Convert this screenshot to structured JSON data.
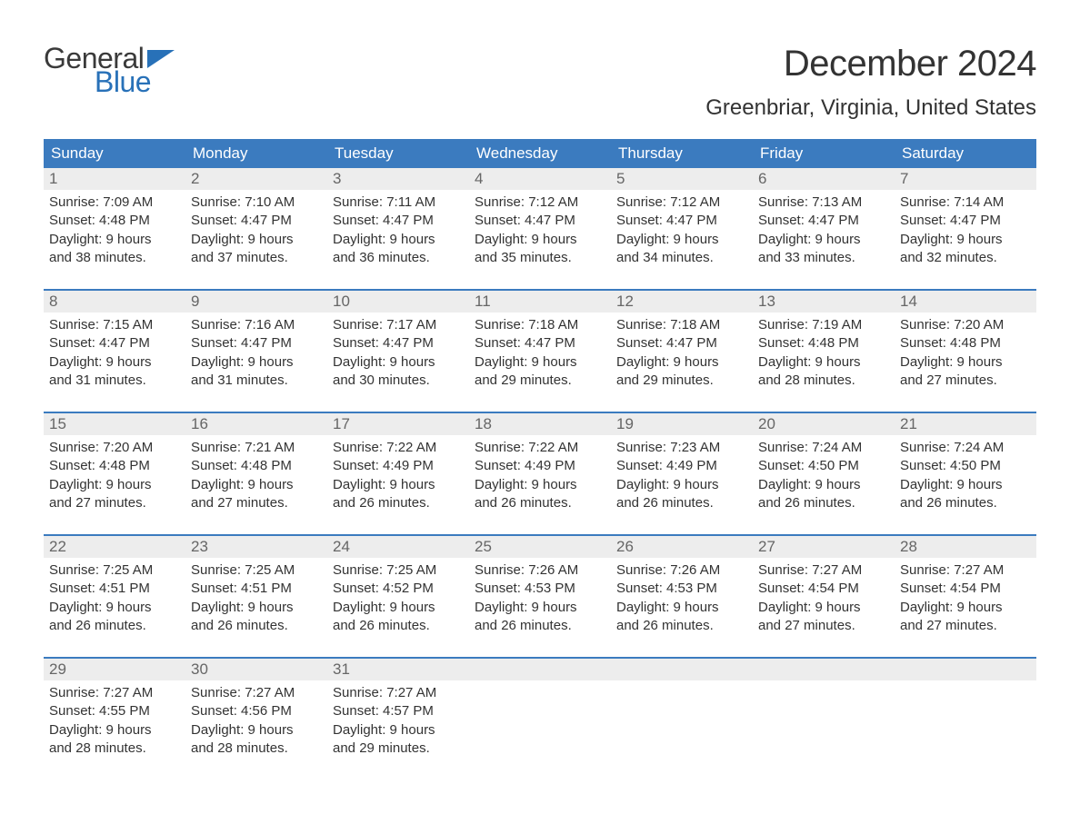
{
  "logo": {
    "text_general": "General",
    "text_blue": "Blue",
    "flag_color": "#2871b8"
  },
  "header": {
    "month_title": "December 2024",
    "location": "Greenbriar, Virginia, United States"
  },
  "style": {
    "header_bg": "#3b7bbf",
    "header_fg": "#ffffff",
    "daynum_bg": "#ededed",
    "daynum_fg": "#666666",
    "body_fg": "#333333",
    "week_sep": "#3b7bbf",
    "page_bg": "#ffffff",
    "title_fontsize": 40,
    "location_fontsize": 24,
    "dow_fontsize": 17,
    "body_fontsize": 15
  },
  "calendar": {
    "type": "table",
    "columns": [
      "Sunday",
      "Monday",
      "Tuesday",
      "Wednesday",
      "Thursday",
      "Friday",
      "Saturday"
    ],
    "weeks": [
      [
        {
          "n": "1",
          "sunrise": "Sunrise: 7:09 AM",
          "sunset": "Sunset: 4:48 PM",
          "d1": "Daylight: 9 hours",
          "d2": "and 38 minutes."
        },
        {
          "n": "2",
          "sunrise": "Sunrise: 7:10 AM",
          "sunset": "Sunset: 4:47 PM",
          "d1": "Daylight: 9 hours",
          "d2": "and 37 minutes."
        },
        {
          "n": "3",
          "sunrise": "Sunrise: 7:11 AM",
          "sunset": "Sunset: 4:47 PM",
          "d1": "Daylight: 9 hours",
          "d2": "and 36 minutes."
        },
        {
          "n": "4",
          "sunrise": "Sunrise: 7:12 AM",
          "sunset": "Sunset: 4:47 PM",
          "d1": "Daylight: 9 hours",
          "d2": "and 35 minutes."
        },
        {
          "n": "5",
          "sunrise": "Sunrise: 7:12 AM",
          "sunset": "Sunset: 4:47 PM",
          "d1": "Daylight: 9 hours",
          "d2": "and 34 minutes."
        },
        {
          "n": "6",
          "sunrise": "Sunrise: 7:13 AM",
          "sunset": "Sunset: 4:47 PM",
          "d1": "Daylight: 9 hours",
          "d2": "and 33 minutes."
        },
        {
          "n": "7",
          "sunrise": "Sunrise: 7:14 AM",
          "sunset": "Sunset: 4:47 PM",
          "d1": "Daylight: 9 hours",
          "d2": "and 32 minutes."
        }
      ],
      [
        {
          "n": "8",
          "sunrise": "Sunrise: 7:15 AM",
          "sunset": "Sunset: 4:47 PM",
          "d1": "Daylight: 9 hours",
          "d2": "and 31 minutes."
        },
        {
          "n": "9",
          "sunrise": "Sunrise: 7:16 AM",
          "sunset": "Sunset: 4:47 PM",
          "d1": "Daylight: 9 hours",
          "d2": "and 31 minutes."
        },
        {
          "n": "10",
          "sunrise": "Sunrise: 7:17 AM",
          "sunset": "Sunset: 4:47 PM",
          "d1": "Daylight: 9 hours",
          "d2": "and 30 minutes."
        },
        {
          "n": "11",
          "sunrise": "Sunrise: 7:18 AM",
          "sunset": "Sunset: 4:47 PM",
          "d1": "Daylight: 9 hours",
          "d2": "and 29 minutes."
        },
        {
          "n": "12",
          "sunrise": "Sunrise: 7:18 AM",
          "sunset": "Sunset: 4:47 PM",
          "d1": "Daylight: 9 hours",
          "d2": "and 29 minutes."
        },
        {
          "n": "13",
          "sunrise": "Sunrise: 7:19 AM",
          "sunset": "Sunset: 4:48 PM",
          "d1": "Daylight: 9 hours",
          "d2": "and 28 minutes."
        },
        {
          "n": "14",
          "sunrise": "Sunrise: 7:20 AM",
          "sunset": "Sunset: 4:48 PM",
          "d1": "Daylight: 9 hours",
          "d2": "and 27 minutes."
        }
      ],
      [
        {
          "n": "15",
          "sunrise": "Sunrise: 7:20 AM",
          "sunset": "Sunset: 4:48 PM",
          "d1": "Daylight: 9 hours",
          "d2": "and 27 minutes."
        },
        {
          "n": "16",
          "sunrise": "Sunrise: 7:21 AM",
          "sunset": "Sunset: 4:48 PM",
          "d1": "Daylight: 9 hours",
          "d2": "and 27 minutes."
        },
        {
          "n": "17",
          "sunrise": "Sunrise: 7:22 AM",
          "sunset": "Sunset: 4:49 PM",
          "d1": "Daylight: 9 hours",
          "d2": "and 26 minutes."
        },
        {
          "n": "18",
          "sunrise": "Sunrise: 7:22 AM",
          "sunset": "Sunset: 4:49 PM",
          "d1": "Daylight: 9 hours",
          "d2": "and 26 minutes."
        },
        {
          "n": "19",
          "sunrise": "Sunrise: 7:23 AM",
          "sunset": "Sunset: 4:49 PM",
          "d1": "Daylight: 9 hours",
          "d2": "and 26 minutes."
        },
        {
          "n": "20",
          "sunrise": "Sunrise: 7:24 AM",
          "sunset": "Sunset: 4:50 PM",
          "d1": "Daylight: 9 hours",
          "d2": "and 26 minutes."
        },
        {
          "n": "21",
          "sunrise": "Sunrise: 7:24 AM",
          "sunset": "Sunset: 4:50 PM",
          "d1": "Daylight: 9 hours",
          "d2": "and 26 minutes."
        }
      ],
      [
        {
          "n": "22",
          "sunrise": "Sunrise: 7:25 AM",
          "sunset": "Sunset: 4:51 PM",
          "d1": "Daylight: 9 hours",
          "d2": "and 26 minutes."
        },
        {
          "n": "23",
          "sunrise": "Sunrise: 7:25 AM",
          "sunset": "Sunset: 4:51 PM",
          "d1": "Daylight: 9 hours",
          "d2": "and 26 minutes."
        },
        {
          "n": "24",
          "sunrise": "Sunrise: 7:25 AM",
          "sunset": "Sunset: 4:52 PM",
          "d1": "Daylight: 9 hours",
          "d2": "and 26 minutes."
        },
        {
          "n": "25",
          "sunrise": "Sunrise: 7:26 AM",
          "sunset": "Sunset: 4:53 PM",
          "d1": "Daylight: 9 hours",
          "d2": "and 26 minutes."
        },
        {
          "n": "26",
          "sunrise": "Sunrise: 7:26 AM",
          "sunset": "Sunset: 4:53 PM",
          "d1": "Daylight: 9 hours",
          "d2": "and 26 minutes."
        },
        {
          "n": "27",
          "sunrise": "Sunrise: 7:27 AM",
          "sunset": "Sunset: 4:54 PM",
          "d1": "Daylight: 9 hours",
          "d2": "and 27 minutes."
        },
        {
          "n": "28",
          "sunrise": "Sunrise: 7:27 AM",
          "sunset": "Sunset: 4:54 PM",
          "d1": "Daylight: 9 hours",
          "d2": "and 27 minutes."
        }
      ],
      [
        {
          "n": "29",
          "sunrise": "Sunrise: 7:27 AM",
          "sunset": "Sunset: 4:55 PM",
          "d1": "Daylight: 9 hours",
          "d2": "and 28 minutes."
        },
        {
          "n": "30",
          "sunrise": "Sunrise: 7:27 AM",
          "sunset": "Sunset: 4:56 PM",
          "d1": "Daylight: 9 hours",
          "d2": "and 28 minutes."
        },
        {
          "n": "31",
          "sunrise": "Sunrise: 7:27 AM",
          "sunset": "Sunset: 4:57 PM",
          "d1": "Daylight: 9 hours",
          "d2": "and 29 minutes."
        },
        null,
        null,
        null,
        null
      ]
    ]
  }
}
